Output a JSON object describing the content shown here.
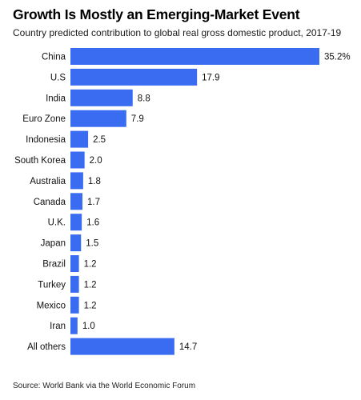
{
  "title": "Growth Is Mostly an Emerging-Market Event",
  "subtitle": "Country predicted contribution to global real gross domestic product, 2017-19",
  "source": "Source: World Bank via the World Economic Forum",
  "colors": {
    "bar": "#3a6cf2"
  },
  "chart_data": {
    "type": "bar",
    "orientation": "horizontal",
    "categories": [
      "China",
      "U.S",
      "India",
      "Euro Zone",
      "Indonesia",
      "South Korea",
      "Australia",
      "Canada",
      "U.K.",
      "Japan",
      "Brazil",
      "Turkey",
      "Mexico",
      "Iran",
      "All others"
    ],
    "values": [
      35.2,
      17.9,
      8.8,
      7.9,
      2.5,
      2.0,
      1.8,
      1.7,
      1.6,
      1.5,
      1.2,
      1.2,
      1.2,
      1.0,
      14.7
    ],
    "value_labels": [
      "35.2%",
      "17.9",
      "8.8",
      "7.9",
      "2.5",
      "2.0",
      "1.8",
      "1.7",
      "1.6",
      "1.5",
      "1.2",
      "1.2",
      "1.2",
      "1.0",
      "14.7"
    ],
    "xlim": [
      0,
      35.2
    ],
    "grid": false,
    "legend": "none"
  }
}
